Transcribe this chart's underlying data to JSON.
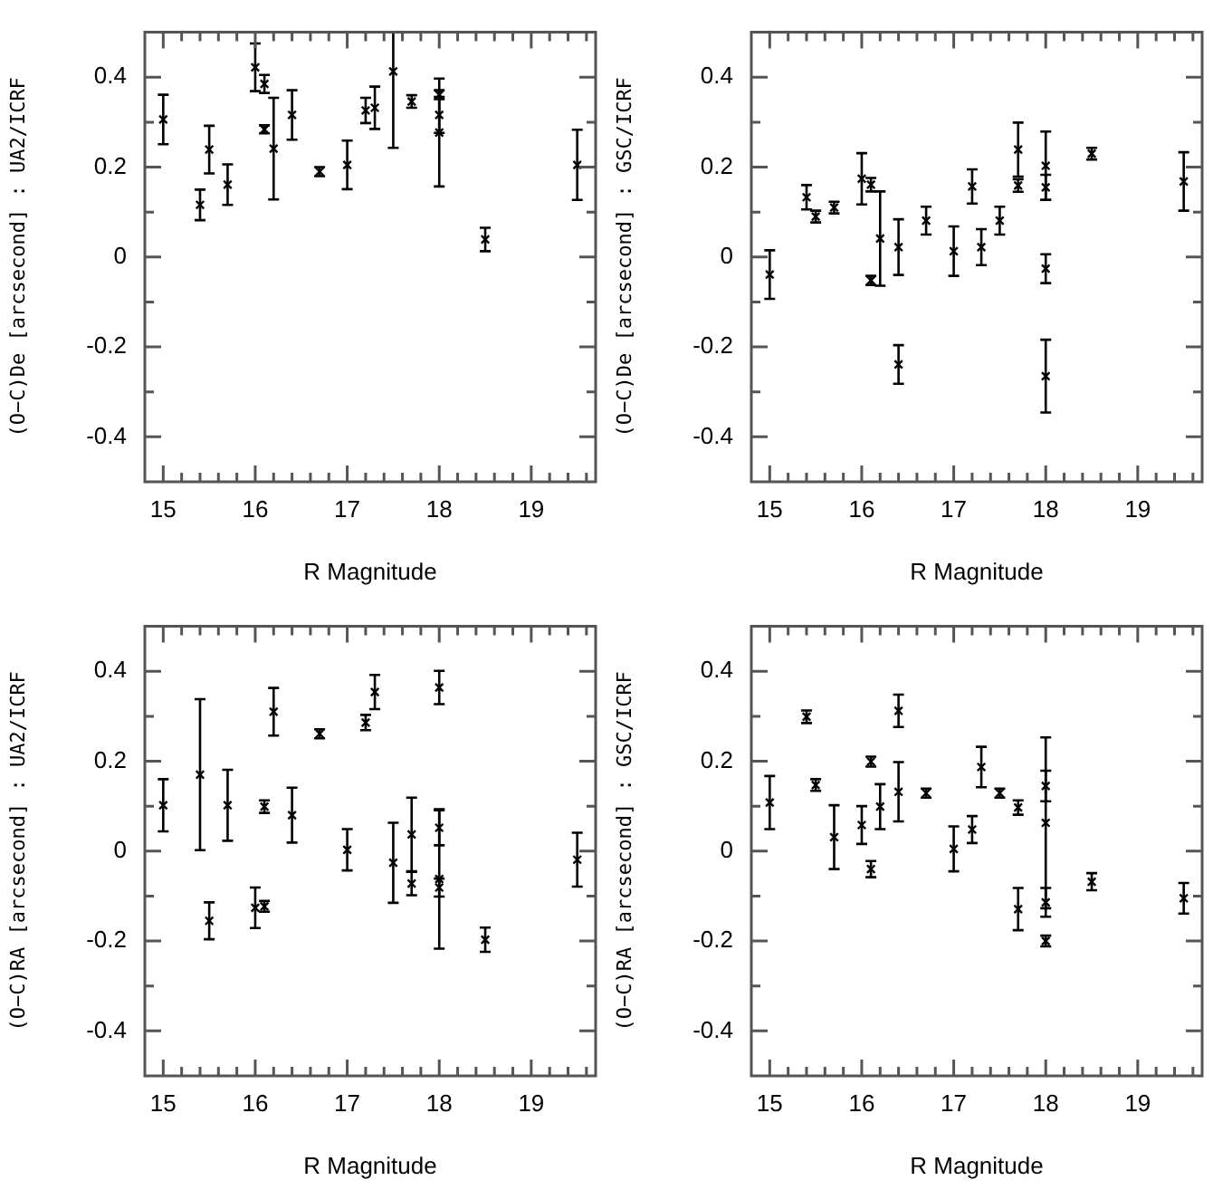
{
  "chart_data": [
    {
      "type": "scatter",
      "xlabel": "R Magnitude",
      "ylabel": "(O−C)De [arcsecond] : UA2/ICRF",
      "marker": "cross",
      "color": "#000000",
      "legend": false,
      "grid": false,
      "x": [
        15.0,
        15.4,
        15.5,
        15.7,
        16.0,
        16.1,
        16.1,
        16.2,
        16.4,
        16.7,
        17.0,
        17.2,
        17.3,
        17.5,
        17.7,
        18.0,
        18.0,
        18.0,
        18.5,
        19.5
      ],
      "values": [
        0.306,
        0.116,
        0.239,
        0.161,
        0.422,
        0.385,
        0.284,
        0.241,
        0.316,
        0.19,
        0.205,
        0.326,
        0.332,
        0.413,
        0.346,
        0.361,
        0.316,
        0.277,
        0.039,
        0.205
      ],
      "errors": [
        0.055,
        0.034,
        0.053,
        0.045,
        0.053,
        0.02,
        0.009,
        0.113,
        0.055,
        0.01,
        0.054,
        0.028,
        0.047,
        [
          0.243,
          0.5
        ],
        0.014,
        0.01,
        0.04,
        0.12,
        0.026,
        0.078
      ],
      "xlim": [
        14.8,
        19.7
      ],
      "ylim": [
        -0.5,
        0.5
      ],
      "xticks": [
        15,
        {
          "value": 15.2,
          "label": null
        },
        {
          "value": 15.4,
          "label": null
        },
        {
          "value": 15.6,
          "label": null
        },
        {
          "value": 15.8,
          "label": null
        },
        16,
        {
          "value": 16.2,
          "label": null
        },
        {
          "value": 16.4,
          "label": null
        },
        {
          "value": 16.6,
          "label": null
        },
        {
          "value": 16.8,
          "label": null
        },
        17,
        {
          "value": 17.2,
          "label": null
        },
        {
          "value": 17.4,
          "label": null
        },
        {
          "value": 17.6,
          "label": null
        },
        {
          "value": 17.8,
          "label": null
        },
        18,
        {
          "value": 18.2,
          "label": null
        },
        {
          "value": 18.4,
          "label": null
        },
        {
          "value": 18.6,
          "label": null
        },
        {
          "value": 18.8,
          "label": null
        },
        19,
        {
          "value": 19.2,
          "label": null
        },
        {
          "value": 19.4,
          "label": null
        },
        {
          "value": 19.6,
          "label": null
        }
      ],
      "yticks": [
        -0.4,
        {
          "value": -0.3,
          "label": null
        },
        -0.2,
        {
          "value": -0.1,
          "label": null
        },
        0,
        {
          "value": 0.1,
          "label": null
        },
        0.2,
        {
          "value": 0.3,
          "label": null
        },
        0.4
      ]
    },
    {
      "type": "scatter",
      "xlabel": "R Magnitude",
      "ylabel": "(O−C)De [arcsecond] : GSC/ICRF",
      "marker": "cross",
      "color": "#000000",
      "legend": false,
      "grid": false,
      "x": [
        15.0,
        15.4,
        15.5,
        15.7,
        16.0,
        16.1,
        16.1,
        16.2,
        16.4,
        16.4,
        16.7,
        17.0,
        17.2,
        17.3,
        17.5,
        17.7,
        17.7,
        18.0,
        18.0,
        18.0,
        18.0,
        18.5,
        19.5
      ],
      "values": [
        -0.039,
        0.133,
        0.09,
        0.11,
        0.174,
        0.161,
        -0.052,
        0.041,
        0.022,
        -0.239,
        0.081,
        0.013,
        0.157,
        0.022,
        0.081,
        0.239,
        0.159,
        0.203,
        0.155,
        -0.026,
        -0.265,
        0.23,
        0.168
      ],
      "errors": [
        0.054,
        0.027,
        0.013,
        0.013,
        0.057,
        0.015,
        0.01,
        0.105,
        0.062,
        0.043,
        0.031,
        0.055,
        0.038,
        0.04,
        0.031,
        0.06,
        0.014,
        0.076,
        0.028,
        0.032,
        0.081,
        0.013,
        0.065
      ],
      "xlim": [
        14.8,
        19.7
      ],
      "ylim": [
        -0.5,
        0.5
      ],
      "xticks": [
        15,
        {
          "value": 15.2,
          "label": null
        },
        {
          "value": 15.4,
          "label": null
        },
        {
          "value": 15.6,
          "label": null
        },
        {
          "value": 15.8,
          "label": null
        },
        16,
        {
          "value": 16.2,
          "label": null
        },
        {
          "value": 16.4,
          "label": null
        },
        {
          "value": 16.6,
          "label": null
        },
        {
          "value": 16.8,
          "label": null
        },
        17,
        {
          "value": 17.2,
          "label": null
        },
        {
          "value": 17.4,
          "label": null
        },
        {
          "value": 17.6,
          "label": null
        },
        {
          "value": 17.8,
          "label": null
        },
        18,
        {
          "value": 18.2,
          "label": null
        },
        {
          "value": 18.4,
          "label": null
        },
        {
          "value": 18.6,
          "label": null
        },
        {
          "value": 18.8,
          "label": null
        },
        19,
        {
          "value": 19.2,
          "label": null
        },
        {
          "value": 19.4,
          "label": null
        },
        {
          "value": 19.6,
          "label": null
        }
      ],
      "yticks": [
        -0.4,
        {
          "value": -0.3,
          "label": null
        },
        -0.2,
        {
          "value": -0.1,
          "label": null
        },
        0,
        {
          "value": 0.1,
          "label": null
        },
        0.2,
        {
          "value": 0.3,
          "label": null
        },
        0.4
      ]
    },
    {
      "type": "scatter",
      "xlabel": "R Magnitude",
      "ylabel": "(O−C)RA [arcsecond] : UA2/ICRF",
      "marker": "cross",
      "color": "#000000",
      "legend": false,
      "grid": false,
      "x": [
        15.0,
        15.4,
        15.5,
        15.7,
        16.0,
        16.1,
        16.1,
        16.2,
        16.4,
        16.7,
        17.0,
        17.2,
        17.3,
        17.5,
        17.7,
        17.7,
        18.0,
        18.0,
        18.0,
        18.0,
        18.5,
        19.5
      ],
      "values": [
        0.102,
        0.17,
        -0.155,
        0.102,
        -0.126,
        -0.123,
        0.099,
        0.31,
        0.08,
        0.261,
        0.003,
        0.286,
        0.354,
        -0.026,
        0.037,
        -0.072,
        0.364,
        0.052,
        -0.062,
        -0.081,
        -0.197,
        -0.019
      ],
      "errors": [
        0.058,
        0.168,
        0.041,
        0.079,
        0.045,
        0.012,
        0.014,
        0.053,
        0.061,
        0.01,
        0.046,
        0.017,
        0.038,
        0.089,
        0.082,
        0.026,
        0.037,
        0.039,
        0.155,
        0.02,
        0.027,
        0.06
      ],
      "xlim": [
        14.8,
        19.7
      ],
      "ylim": [
        -0.5,
        0.5
      ],
      "xticks": [
        15,
        {
          "value": 15.2,
          "label": null
        },
        {
          "value": 15.4,
          "label": null
        },
        {
          "value": 15.6,
          "label": null
        },
        {
          "value": 15.8,
          "label": null
        },
        16,
        {
          "value": 16.2,
          "label": null
        },
        {
          "value": 16.4,
          "label": null
        },
        {
          "value": 16.6,
          "label": null
        },
        {
          "value": 16.8,
          "label": null
        },
        17,
        {
          "value": 17.2,
          "label": null
        },
        {
          "value": 17.4,
          "label": null
        },
        {
          "value": 17.6,
          "label": null
        },
        {
          "value": 17.8,
          "label": null
        },
        18,
        {
          "value": 18.2,
          "label": null
        },
        {
          "value": 18.4,
          "label": null
        },
        {
          "value": 18.6,
          "label": null
        },
        {
          "value": 18.8,
          "label": null
        },
        19,
        {
          "value": 19.2,
          "label": null
        },
        {
          "value": 19.4,
          "label": null
        },
        {
          "value": 19.6,
          "label": null
        }
      ],
      "yticks": [
        -0.4,
        {
          "value": -0.3,
          "label": null
        },
        -0.2,
        {
          "value": -0.1,
          "label": null
        },
        0,
        {
          "value": 0.1,
          "label": null
        },
        0.2,
        {
          "value": 0.3,
          "label": null
        },
        0.4
      ]
    },
    {
      "type": "scatter",
      "xlabel": "R Magnitude",
      "ylabel": "(O−C)RA [arcsecond] : GSC/ICRF",
      "marker": "cross",
      "color": "#000000",
      "legend": false,
      "grid": false,
      "x": [
        15.0,
        15.4,
        15.5,
        15.7,
        16.0,
        16.1,
        16.1,
        16.2,
        16.4,
        16.4,
        16.7,
        17.0,
        17.2,
        17.3,
        17.5,
        17.7,
        17.7,
        18.0,
        18.0,
        18.0,
        18.0,
        18.5,
        19.5
      ],
      "values": [
        0.108,
        0.299,
        0.147,
        0.031,
        0.058,
        0.199,
        -0.04,
        0.099,
        0.312,
        0.132,
        0.129,
        0.005,
        0.048,
        0.187,
        0.129,
        0.097,
        -0.129,
        0.145,
        0.063,
        -0.114,
        -0.2,
        -0.068,
        -0.105
      ],
      "errors": [
        0.059,
        0.014,
        0.013,
        0.071,
        0.042,
        0.011,
        0.018,
        0.05,
        0.036,
        0.066,
        0.01,
        0.05,
        0.03,
        0.045,
        0.01,
        0.016,
        0.047,
        0.034,
        0.19,
        0.032,
        0.012,
        0.019,
        0.034
      ],
      "xlim": [
        14.8,
        19.7
      ],
      "ylim": [
        -0.5,
        0.5
      ],
      "xticks": [
        15,
        {
          "value": 15.2,
          "label": null
        },
        {
          "value": 15.4,
          "label": null
        },
        {
          "value": 15.6,
          "label": null
        },
        {
          "value": 15.8,
          "label": null
        },
        16,
        {
          "value": 16.2,
          "label": null
        },
        {
          "value": 16.4,
          "label": null
        },
        {
          "value": 16.6,
          "label": null
        },
        {
          "value": 16.8,
          "label": null
        },
        17,
        {
          "value": 17.2,
          "label": null
        },
        {
          "value": 17.4,
          "label": null
        },
        {
          "value": 17.6,
          "label": null
        },
        {
          "value": 17.8,
          "label": null
        },
        18,
        {
          "value": 18.2,
          "label": null
        },
        {
          "value": 18.4,
          "label": null
        },
        {
          "value": 18.6,
          "label": null
        },
        {
          "value": 18.8,
          "label": null
        },
        19,
        {
          "value": 19.2,
          "label": null
        },
        {
          "value": 19.4,
          "label": null
        },
        {
          "value": 19.6,
          "label": null
        }
      ],
      "yticks": [
        -0.4,
        {
          "value": -0.3,
          "label": null
        },
        -0.2,
        {
          "value": -0.1,
          "label": null
        },
        0,
        {
          "value": 0.1,
          "label": null
        },
        0.2,
        {
          "value": 0.3,
          "label": null
        },
        0.4
      ]
    }
  ]
}
